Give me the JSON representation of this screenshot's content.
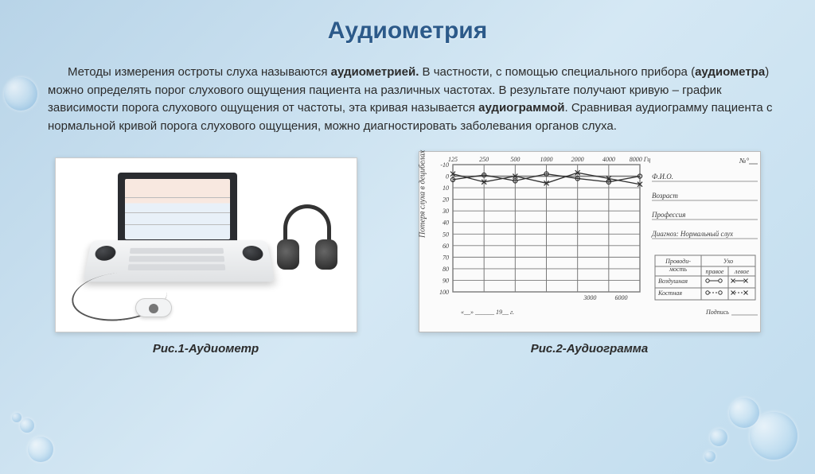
{
  "title": "Аудиометрия",
  "paragraph": {
    "indent": "      ",
    "t1": "Методы измерения остроты слуха называются ",
    "b1": "аудиометрией.",
    "t2": " В частности, с помощью специального прибора (",
    "b2": "аудиометра",
    "t3": ") можно определять порог слухового ощущения пациента на различных частотах. В результате получают кривую – график зависимости порога слухового ощущения от частоты, эта кривая называется ",
    "b3": "аудиограммой",
    "t4": ". Сравнивая аудиограмму пациента с нормальной кривой порога слухового ощущения, можно диагностировать заболевания органов слуха."
  },
  "fig1_caption": "Рис.1-Аудиометр",
  "fig2_caption": "Рис.2-Аудиограмма",
  "audiogram": {
    "x_ticks": [
      "125",
      "250",
      "500",
      "1000",
      "2000",
      "4000",
      "8000 Гц"
    ],
    "x_minor": [
      "3000",
      "6000"
    ],
    "y_ticks": [
      "-10",
      "0",
      "10",
      "20",
      "30",
      "40",
      "50",
      "60",
      "70",
      "80",
      "90",
      "100"
    ],
    "y_label_text": "Потеря слуха в децибелах",
    "right_fields": [
      "№°",
      "Ф.И.О.",
      "Возраст",
      "Профессия",
      "Диагноз: Нормальный слух"
    ],
    "legend_header_left": "Проводи-\nмость",
    "legend_header_right": "Ухо",
    "legend_sub_right_l": "правое",
    "legend_sub_right_r": "левое",
    "legend_rows": [
      "Воздушная",
      "Костная"
    ],
    "bottom_date_prefix": "«__» ______ 19__ г.",
    "bottom_sign": "Подпись",
    "curve_right": [
      [
        0,
        3
      ],
      [
        1,
        -1
      ],
      [
        2,
        4
      ],
      [
        3,
        -2
      ],
      [
        4,
        2
      ],
      [
        5,
        5
      ],
      [
        6,
        0
      ]
    ],
    "curve_left": [
      [
        0,
        -2
      ],
      [
        1,
        5
      ],
      [
        2,
        0
      ],
      [
        3,
        6
      ],
      [
        4,
        -3
      ],
      [
        5,
        2
      ],
      [
        6,
        7
      ]
    ],
    "grid_color": "#7a7a7a",
    "line_color": "#2f2f2f",
    "background": "#fbfbfb"
  }
}
